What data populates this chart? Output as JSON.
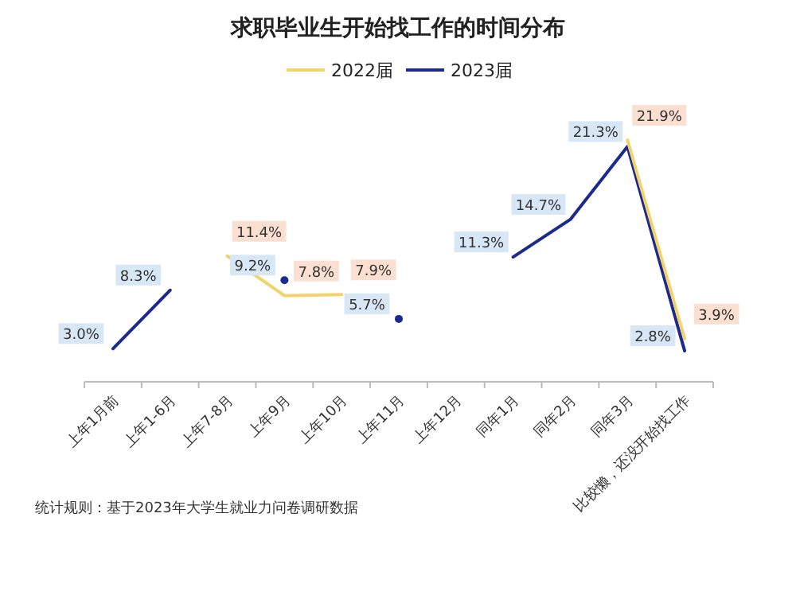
{
  "chart_data": {
    "type": "line",
    "title": "求职毕业生开始找工作的时间分布",
    "categories": [
      "上年1月前",
      "上年1-6月",
      "上年7-8月",
      "上年9月",
      "上年10月",
      "上年11月",
      "上年12月",
      "同年1月",
      "同年2月",
      "同年3月",
      "比较懒，还没开始找工作"
    ],
    "series": [
      {
        "name": "2022届",
        "color": "#f2d36b",
        "values": [
          null,
          null,
          11.4,
          7.8,
          7.9,
          null,
          null,
          null,
          null,
          21.9,
          3.9
        ],
        "value_labels": [
          null,
          null,
          "11.4%",
          "7.8%",
          "7.9%",
          null,
          null,
          null,
          null,
          "21.9%",
          "3.9%"
        ]
      },
      {
        "name": "2023届",
        "color": "#1c2a8f",
        "values": [
          3.0,
          8.3,
          null,
          9.2,
          null,
          5.7,
          null,
          11.3,
          14.7,
          21.3,
          2.8
        ],
        "value_labels": [
          "3.0%",
          "8.3%",
          null,
          "9.2%",
          null,
          "5.7%",
          null,
          "11.3%",
          "14.7%",
          "21.3%",
          "2.8%"
        ]
      }
    ],
    "legend": "top",
    "marker": "none",
    "line_style": "solid",
    "annotations": [
      "统计规则：基于2023年大学生就业力问卷调研数据"
    ]
  }
}
